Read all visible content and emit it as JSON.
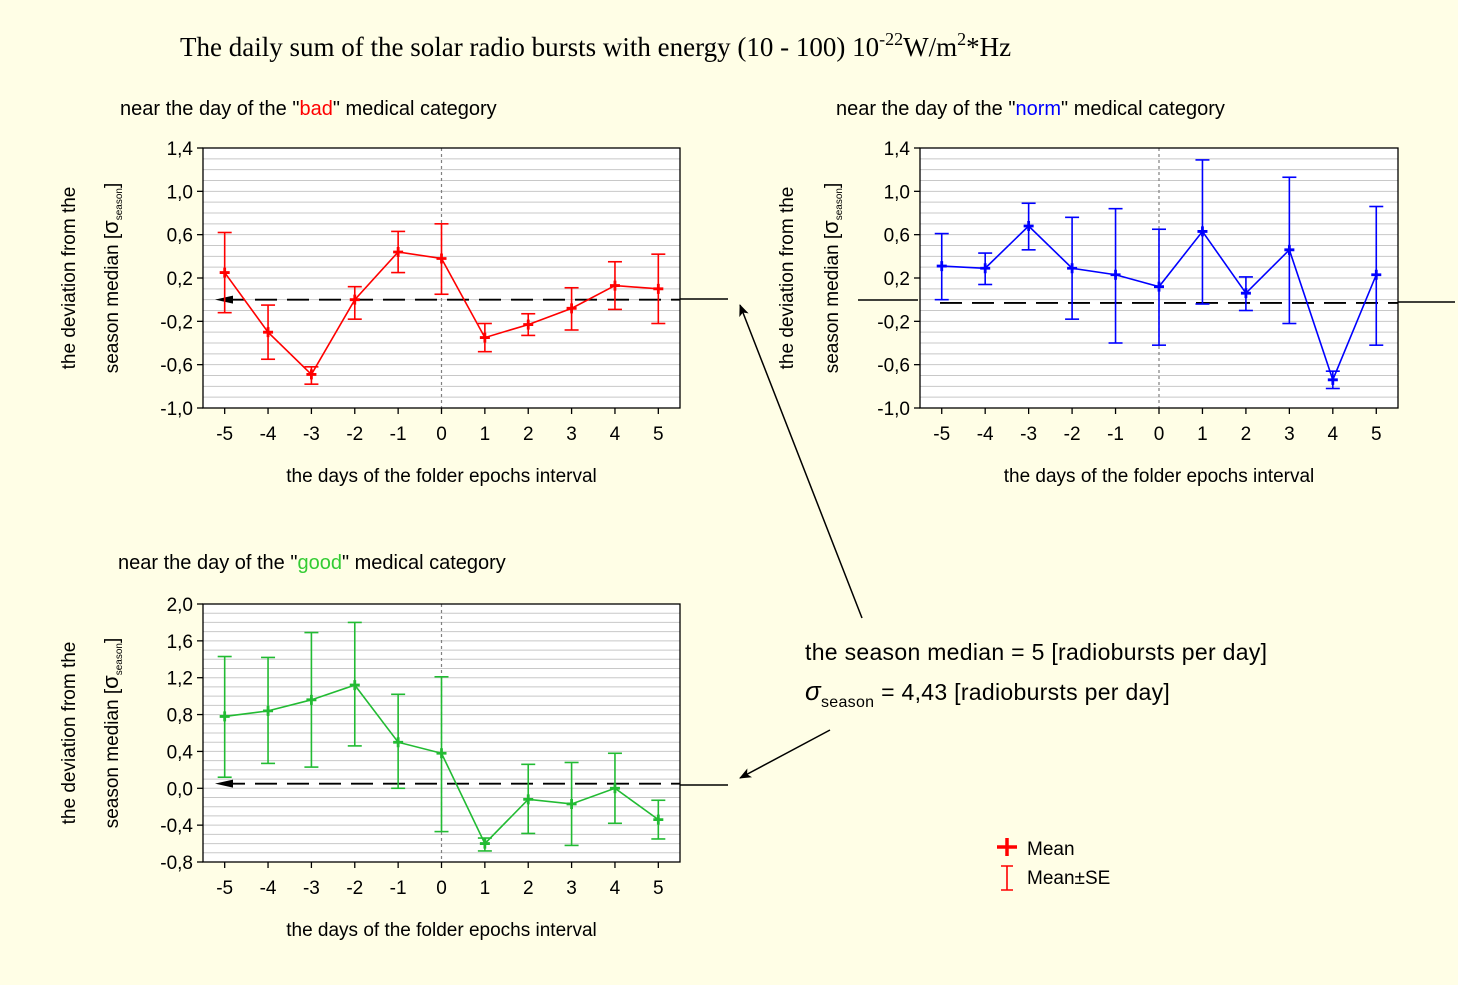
{
  "title": {
    "prefix": "The daily sum of the solar radio bursts with energy (10 - 100) 10",
    "exponent": "-22",
    "unit_a": "W/m",
    "unit_exp": "2",
    "unit_b": "*Hz"
  },
  "note": {
    "median_line": "the season median = 5 [radiobursts per day]",
    "sigma_symbol": "σ",
    "sigma_subscript": "season",
    "sigma_value": " = 4,43 [radiobursts per day]"
  },
  "legend": {
    "mean_label": "Mean",
    "se_label": "Mean±SE",
    "color": "#ff0000"
  },
  "chart_data": [
    {
      "type": "line",
      "subtitle_pre": "near the day of the \"",
      "subtitle_word": "bad",
      "subtitle_post": "\" medical category",
      "word_color": "#ff0000",
      "color": "#ff0000",
      "ylabel_line1": "the deviation from the",
      "ylabel_line2_pre": "season median [",
      "ylabel_sigma": "σ",
      "ylabel_sub": "season",
      "ylabel_close": "]",
      "xlabel": "the days of the folder epochs interval",
      "ylim": [
        -1.0,
        1.4
      ],
      "yticks": [
        -1.0,
        -0.6,
        -0.2,
        0.2,
        0.6,
        1.0,
        1.4
      ],
      "ytick_labels": [
        "-1,0",
        "-0,6",
        "-0,2",
        "0,2",
        "0,6",
        "1,0",
        "1,4"
      ],
      "x": [
        -5,
        -4,
        -3,
        -2,
        -1,
        0,
        1,
        2,
        3,
        4,
        5
      ],
      "xtick_labels": [
        "-5",
        "-4",
        "-3",
        "-2",
        "-1",
        "0",
        "1",
        "2",
        "3",
        "4",
        "5"
      ],
      "series": [
        {
          "mean": [
            0.25,
            -0.3,
            -0.69,
            0.0,
            0.44,
            0.38,
            -0.35,
            -0.23,
            -0.08,
            0.13,
            0.1
          ],
          "se_low": [
            -0.12,
            -0.55,
            -0.78,
            -0.18,
            0.25,
            0.05,
            -0.48,
            -0.33,
            -0.28,
            -0.09,
            -0.22
          ],
          "se_high": [
            0.62,
            -0.05,
            -0.62,
            0.12,
            0.63,
            0.7,
            -0.22,
            -0.13,
            0.11,
            0.35,
            0.42
          ]
        }
      ],
      "median_line_y": 0.0,
      "grid": true
    },
    {
      "type": "line",
      "subtitle_pre": "near the day of the \"",
      "subtitle_word": "norm",
      "subtitle_post": "\" medical category",
      "word_color": "#0000ff",
      "color": "#0000ff",
      "ylabel_line1": "the deviation from the",
      "ylabel_line2_pre": "season median [",
      "ylabel_sigma": "σ",
      "ylabel_sub": "season",
      "ylabel_close": "]",
      "xlabel": "the days of the folder epochs interval",
      "ylim": [
        -1.0,
        1.4
      ],
      "yticks": [
        -1.0,
        -0.6,
        -0.2,
        0.2,
        0.6,
        1.0,
        1.4
      ],
      "ytick_labels": [
        "-1,0",
        "-0,6",
        "-0,2",
        "0,2",
        "0,6",
        "1,0",
        "1,4"
      ],
      "x": [
        -5,
        -4,
        -3,
        -2,
        -1,
        0,
        1,
        2,
        3,
        4,
        5
      ],
      "xtick_labels": [
        "-5",
        "-4",
        "-3",
        "-2",
        "-1",
        "0",
        "1",
        "2",
        "3",
        "4",
        "5"
      ],
      "series": [
        {
          "mean": [
            0.31,
            0.29,
            0.68,
            0.29,
            0.23,
            0.12,
            0.63,
            0.06,
            0.46,
            -0.74,
            0.23
          ],
          "se_low": [
            0.0,
            0.14,
            0.46,
            -0.18,
            -0.4,
            -0.42,
            -0.04,
            -0.1,
            -0.22,
            -0.82,
            -0.42
          ],
          "se_high": [
            0.61,
            0.43,
            0.89,
            0.76,
            0.84,
            0.65,
            1.29,
            0.21,
            1.13,
            -0.66,
            0.86
          ]
        }
      ],
      "median_line_y": -0.03,
      "grid": true
    },
    {
      "type": "line",
      "subtitle_pre": "near the day of the \"",
      "subtitle_word": "good",
      "subtitle_post": "\" medical category",
      "word_color": "#33cc33",
      "color": "#22bb33",
      "ylabel_line1": "the deviation from the",
      "ylabel_line2_pre": "season median [",
      "ylabel_sigma": "σ",
      "ylabel_sub": "season",
      "ylabel_close": "]",
      "xlabel": "the days of the folder epochs interval",
      "ylim": [
        -0.8,
        2.0
      ],
      "yticks": [
        -0.8,
        -0.4,
        0.0,
        0.4,
        0.8,
        1.2,
        1.6,
        2.0
      ],
      "ytick_labels": [
        "-0,8",
        "-0,4",
        "0,0",
        "0,4",
        "0,8",
        "1,2",
        "1,6",
        "2,0"
      ],
      "x": [
        -5,
        -4,
        -3,
        -2,
        -1,
        0,
        1,
        2,
        3,
        4,
        5
      ],
      "xtick_labels": [
        "-5",
        "-4",
        "-3",
        "-2",
        "-1",
        "0",
        "1",
        "2",
        "3",
        "4",
        "5"
      ],
      "series": [
        {
          "mean": [
            0.78,
            0.84,
            0.96,
            1.12,
            0.5,
            0.38,
            -0.6,
            -0.12,
            -0.17,
            0.0,
            -0.34
          ],
          "se_low": [
            0.12,
            0.27,
            0.23,
            0.46,
            0.0,
            -0.47,
            -0.68,
            -0.49,
            -0.62,
            -0.38,
            -0.55
          ],
          "se_high": [
            1.43,
            1.42,
            1.69,
            1.8,
            1.02,
            1.21,
            -0.54,
            0.26,
            0.28,
            0.38,
            -0.13
          ]
        }
      ],
      "median_line_y": 0.05,
      "grid": true
    }
  ]
}
